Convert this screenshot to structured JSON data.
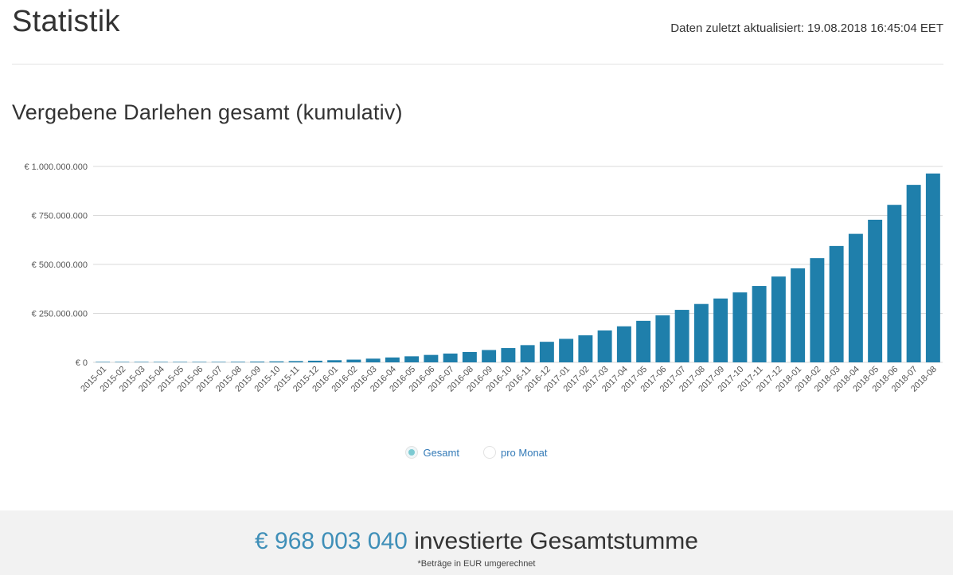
{
  "header": {
    "title": "Statistik",
    "updated_text": "Daten zuletzt aktualisiert: 19.08.2018 16:45:04 EET"
  },
  "section": {
    "title": "Vergebene Darlehen gesamt (kumulativ)"
  },
  "legend": {
    "options": [
      {
        "label": "Gesamt",
        "checked": true
      },
      {
        "label": "pro Monat",
        "checked": false
      }
    ]
  },
  "footer": {
    "amount": "€ 968 003 040",
    "label": " investierte Gesamtstumme",
    "note": "*Beträge in EUR umgerechnet"
  },
  "colors": {
    "bar": "#1f7fab",
    "grid": "#d9d9d9",
    "tick_text": "#555555"
  },
  "chart_data": {
    "type": "bar",
    "categories": [
      "2015-01",
      "2015-02",
      "2015-03",
      "2015-04",
      "2015-05",
      "2015-06",
      "2015-07",
      "2015-08",
      "2015-09",
      "2015-10",
      "2015-11",
      "2015-12",
      "2016-01",
      "2016-02",
      "2016-03",
      "2016-04",
      "2016-05",
      "2016-06",
      "2016-07",
      "2016-08",
      "2016-09",
      "2016-10",
      "2016-11",
      "2016-12",
      "2017-01",
      "2017-02",
      "2017-03",
      "2017-04",
      "2017-05",
      "2017-06",
      "2017-07",
      "2017-08",
      "2017-09",
      "2017-10",
      "2017-11",
      "2017-12",
      "2018-01",
      "2018-02",
      "2018-03",
      "2018-04",
      "2018-05",
      "2018-06",
      "2018-07",
      "2018-08"
    ],
    "values": [
      100000,
      200000,
      400000,
      700000,
      1000000,
      1500000,
      2000000,
      3000000,
      4000000,
      5000000,
      6500000,
      8500000,
      11000000,
      14000000,
      19000000,
      25000000,
      31000000,
      38000000,
      45000000,
      53000000,
      63000000,
      73000000,
      88000000,
      105000000,
      120000000,
      138000000,
      163000000,
      184000000,
      212000000,
      240000000,
      268000000,
      298000000,
      326000000,
      357000000,
      390000000,
      438000000,
      480000000,
      532000000,
      594000000,
      656000000,
      728000000,
      804000000,
      906000000,
      964000000
    ],
    "yticks": [
      "€ 0",
      "€ 250.000.000",
      "€ 500.000.000",
      "€ 750.000.000",
      "€ 1.000.000.000"
    ],
    "ytick_values": [
      0,
      250000000,
      500000000,
      750000000,
      1000000000
    ],
    "ylim": [
      0,
      1000000000
    ],
    "grid": true
  }
}
